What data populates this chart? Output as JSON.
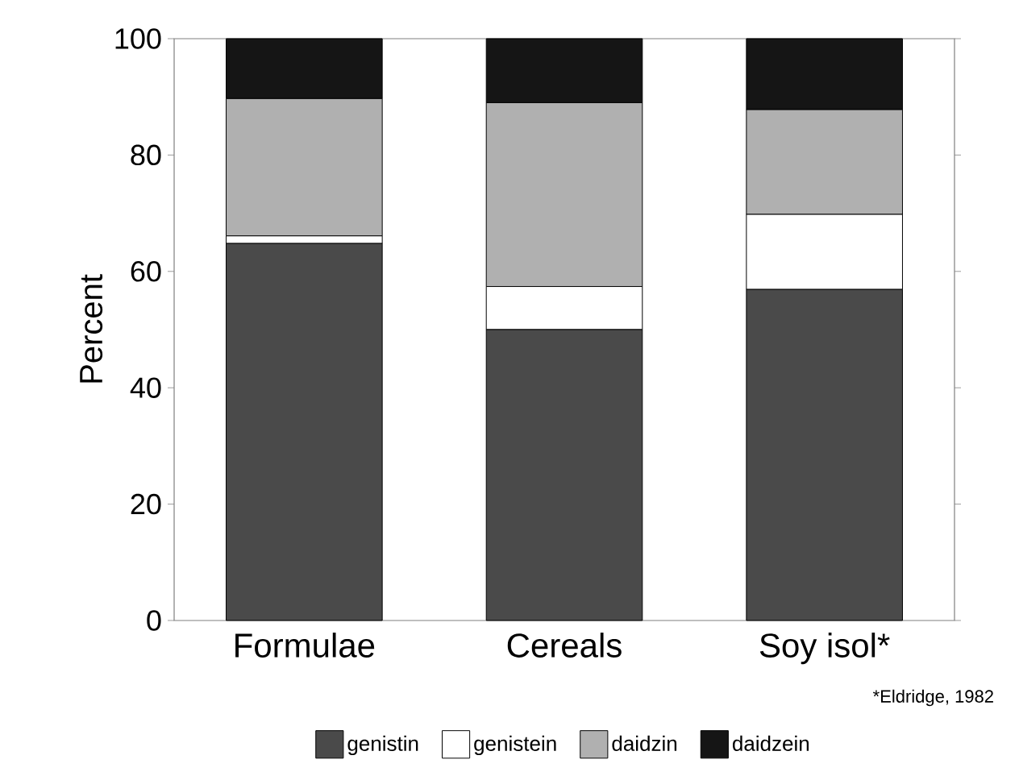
{
  "chart_data": {
    "type": "bar",
    "stacked": true,
    "ylabel": "Percent",
    "categories": [
      "Formulae",
      "Cereals",
      "Soy isol*"
    ],
    "series": [
      {
        "name": "genistin",
        "color": "#4a4a4a",
        "values": [
          64.8,
          50.0,
          56.9
        ]
      },
      {
        "name": "genistein",
        "color": "#ffffff",
        "values": [
          1.3,
          7.4,
          12.9
        ]
      },
      {
        "name": "daidzin",
        "color": "#b0b0b0",
        "values": [
          23.6,
          31.6,
          18.0
        ]
      },
      {
        "name": "daidzein",
        "color": "#151515",
        "values": [
          10.3,
          11.0,
          12.2
        ]
      }
    ],
    "ylim": [
      0,
      100
    ],
    "yticks": [
      0,
      20,
      40,
      60,
      80,
      100
    ],
    "legend": "bottom",
    "annotations": [
      "*Eldridge, 1982"
    ]
  }
}
